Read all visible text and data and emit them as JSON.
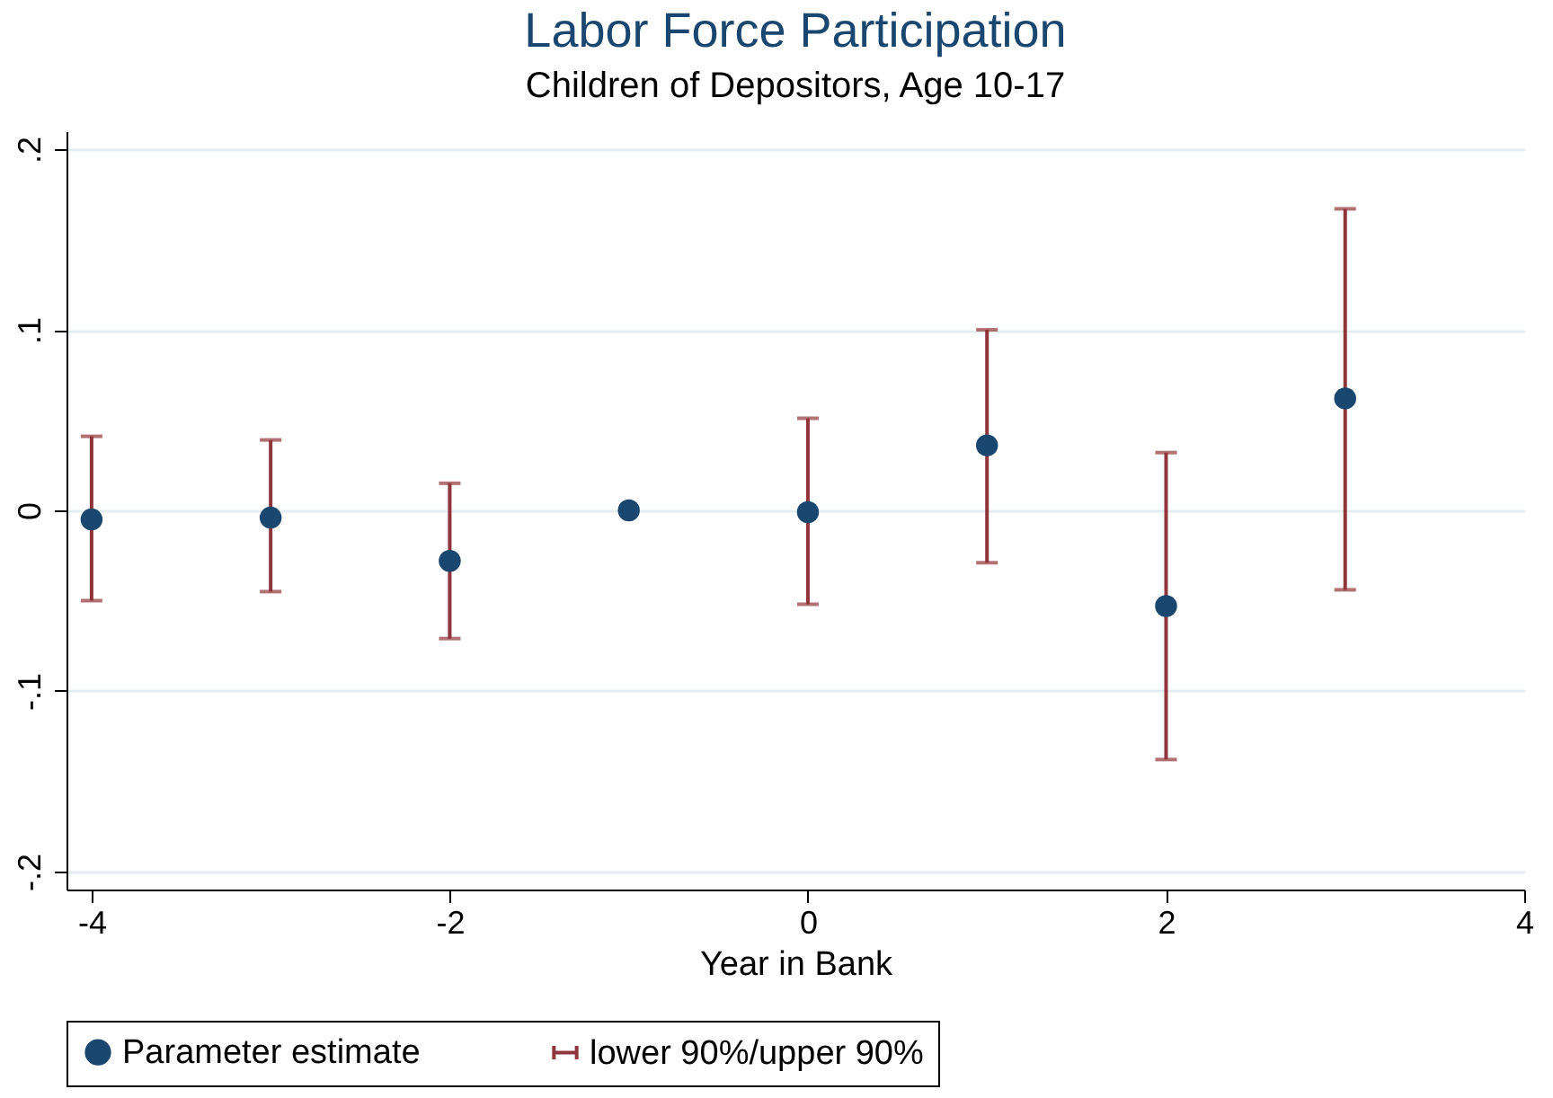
{
  "chart_data": {
    "type": "scatter",
    "title": "Labor Force Participation",
    "subtitle": "Children of Depositors, Age 10-17",
    "xlabel": "Year in Bank",
    "x": [
      -4,
      -3,
      -2,
      -1,
      0,
      1,
      2,
      3
    ],
    "series": [
      {
        "name": "Parameter estimate",
        "color": "#1a476f",
        "values": [
          -0.005,
          -0.004,
          -0.028,
          0,
          -0.001,
          0.036,
          -0.053,
          0.062
        ],
        "errors": [
          [
            -0.05,
            0.041
          ],
          [
            -0.045,
            0.039
          ],
          [
            -0.071,
            0.015
          ],
          null,
          [
            -0.052,
            0.051
          ],
          [
            -0.029,
            0.1
          ],
          [
            -0.138,
            0.032
          ],
          [
            -0.044,
            0.167
          ]
        ]
      },
      {
        "name": "lower 90%/upper 90%",
        "color": "#90353b",
        "values": [
          null,
          null,
          null,
          null,
          null,
          null,
          null,
          null
        ]
      }
    ],
    "xlim": [
      -4.14,
      4
    ],
    "xticks": [
      -4,
      -2,
      0,
      2,
      4
    ],
    "ylim": [
      -0.21,
      0.21
    ],
    "yticks": [
      {
        "value": -0.2,
        "label": "-.2"
      },
      {
        "value": -0.1,
        "label": "-.1"
      },
      0,
      {
        "value": 0.1,
        "label": ".1"
      },
      {
        "value": 0.2,
        "label": ".2"
      }
    ],
    "grid": "y",
    "legend": "bottom",
    "marker": "circle"
  }
}
